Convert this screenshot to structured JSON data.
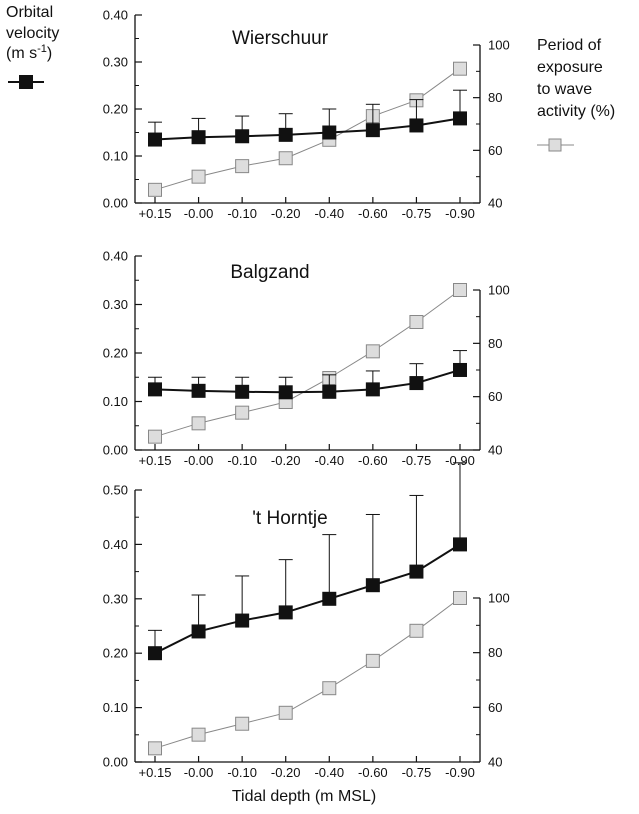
{
  "legend": {
    "velocity_lines": [
      "Orbital",
      "velocity",
      "(m s",
      "-1",
      ")"
    ],
    "exposure_lines": [
      "Period of",
      "exposure",
      "to wave",
      "activity (%)"
    ]
  },
  "xlabel": "Tidal depth (m MSL)",
  "colors": {
    "velocity_fill": "#111111",
    "exposure_fill": "#dddddd",
    "exposure_stroke": "#888888"
  },
  "chart_data": [
    {
      "type": "line",
      "title": "Wierschuur",
      "categories": [
        "+0.15",
        "-0.00",
        "-0.10",
        "-0.20",
        "-0.40",
        "-0.60",
        "-0.75",
        "-0.90"
      ],
      "y_left": {
        "ticks": [
          "0.00",
          "0.10",
          "0.20",
          "0.30",
          "0.40"
        ],
        "ylim": [
          0,
          0.4
        ]
      },
      "y_right": {
        "ticks": [
          "40",
          "60",
          "80",
          "100"
        ],
        "ylim": [
          40,
          100
        ]
      },
      "series": [
        {
          "key": "velocity",
          "axis": "left",
          "values": [
            0.135,
            0.14,
            0.142,
            0.145,
            0.15,
            0.155,
            0.165,
            0.18
          ],
          "error_upper": [
            0.172,
            0.18,
            0.185,
            0.19,
            0.2,
            0.21,
            0.22,
            0.24
          ]
        },
        {
          "key": "exposure",
          "axis": "right",
          "values": [
            45,
            50,
            54,
            57,
            64,
            73,
            79,
            91
          ]
        }
      ]
    },
    {
      "type": "line",
      "title": "Balgzand",
      "categories": [
        "+0.15",
        "-0.00",
        "-0.10",
        "-0.20",
        "-0.40",
        "-0.60",
        "-0.75",
        "-0.90"
      ],
      "y_left": {
        "ticks": [
          "0.00",
          "0.10",
          "0.20",
          "0.30",
          "0.40"
        ],
        "ylim": [
          0,
          0.4
        ]
      },
      "y_right": {
        "ticks": [
          "40",
          "60",
          "80",
          "100"
        ],
        "ylim": [
          40,
          100
        ]
      },
      "series": [
        {
          "key": "velocity",
          "axis": "left",
          "values": [
            0.125,
            0.122,
            0.12,
            0.119,
            0.12,
            0.125,
            0.138,
            0.165
          ],
          "error_upper": [
            0.15,
            0.15,
            0.15,
            0.15,
            0.155,
            0.163,
            0.178,
            0.205
          ]
        },
        {
          "key": "exposure",
          "axis": "right",
          "values": [
            45,
            50,
            54,
            58,
            67,
            77,
            88,
            100
          ]
        }
      ]
    },
    {
      "type": "line",
      "title": "'t Horntje",
      "categories": [
        "+0.15",
        "-0.00",
        "-0.10",
        "-0.20",
        "-0.40",
        "-0.60",
        "-0.75",
        "-0.90"
      ],
      "y_left": {
        "ticks": [
          "0.00",
          "0.10",
          "0.20",
          "0.30",
          "0.40",
          "0.50"
        ],
        "ylim": [
          0,
          0.5
        ]
      },
      "y_right": {
        "ticks": [
          "40",
          "60",
          "80",
          "100"
        ],
        "ylim": [
          40,
          100
        ]
      },
      "series": [
        {
          "key": "velocity",
          "axis": "left",
          "values": [
            0.2,
            0.24,
            0.26,
            0.275,
            0.3,
            0.325,
            0.35,
            0.4
          ],
          "error_upper": [
            0.242,
            0.307,
            0.342,
            0.372,
            0.418,
            0.455,
            0.49,
            0.55
          ]
        },
        {
          "key": "exposure",
          "axis": "right",
          "values": [
            45,
            50,
            54,
            58,
            67,
            77,
            88,
            100
          ]
        }
      ]
    }
  ]
}
